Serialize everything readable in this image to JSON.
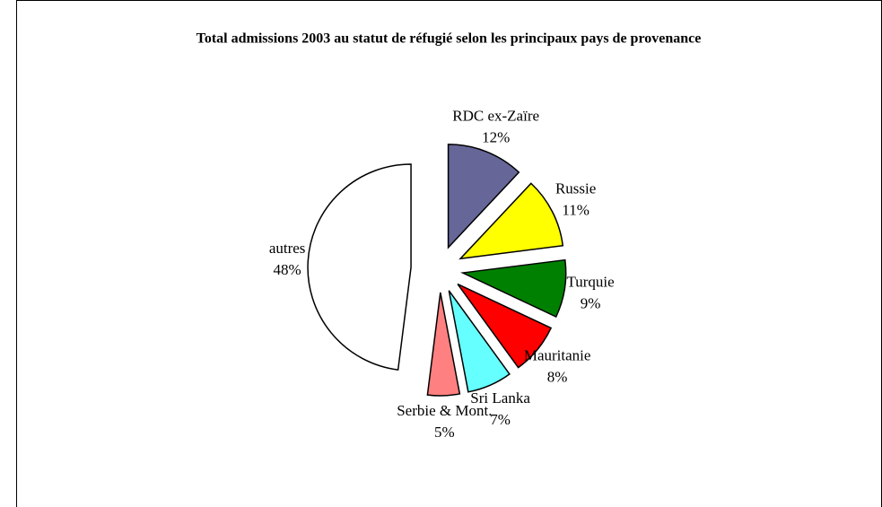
{
  "chart_data": {
    "type": "pie",
    "title": "Total admissions 2003 au statut de réfugié selon les principaux pays de provenance",
    "categories": [
      "RDC ex-Zaïre",
      "Russie",
      "Turquie",
      "Mauritanie",
      "Sri Lanka",
      "Serbie & Mont.",
      "autres"
    ],
    "values": [
      12,
      11,
      9,
      8,
      7,
      5,
      48
    ],
    "value_labels": [
      "12%",
      "11%",
      "9%",
      "8%",
      "7%",
      "5%",
      "48%"
    ],
    "colors": [
      "#666699",
      "#ffff00",
      "#008000",
      "#ff0000",
      "#66ffff",
      "#ff8080",
      "#ffffff"
    ]
  }
}
